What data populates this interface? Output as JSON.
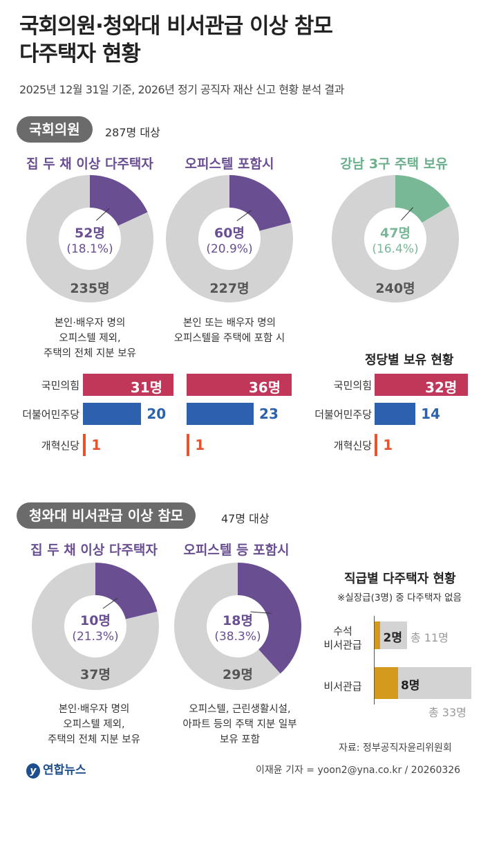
{
  "title_line1": "국회의원·청와대 비서관급 이상 참모",
  "title_line2": "다주택자 현황",
  "subtitle": "2025년 12월 31일 기준, 2026년 정기 공직자 재산 신고 현황 분석 결과",
  "assembly": {
    "pill": "국회의원",
    "target": "287명 대상",
    "party_section_title": "정당별 보유 현황"
  },
  "secretary": {
    "pill": "청와대 비서관급 이상 참모",
    "target": "47명 대상",
    "grade_title": "직급별 다주택자 현황",
    "grade_note": "※실장급(3명) 중 다주택자 없음"
  },
  "colors": {
    "purple": "#6a4e92",
    "green": "#79b896",
    "grey": "#d3d3d3",
    "red": "#c0375a",
    "blue": "#2b61ad",
    "orange": "#e8532b",
    "gold": "#d49a1c"
  },
  "chart_data": [
    {
      "type": "pie",
      "id": "assembly-multi",
      "title": "집 두 채 이상 다주택자",
      "slices": [
        {
          "label": "52명",
          "value": 52,
          "pct": "(18.1%)"
        },
        {
          "label": "235명",
          "value": 235
        }
      ],
      "note": [
        "본인·배우자 명의",
        "오피스텔 제외,",
        "주택의 전체 지분 보유"
      ]
    },
    {
      "type": "pie",
      "id": "assembly-officetel",
      "title": "오피스텔 포함시",
      "slices": [
        {
          "label": "60명",
          "value": 60,
          "pct": "(20.9%)"
        },
        {
          "label": "227명",
          "value": 227
        }
      ],
      "note": [
        "본인 또는 배우자 명의",
        "오피스텔을 주택에 포함 시"
      ]
    },
    {
      "type": "pie",
      "id": "assembly-gangnam",
      "title": "강남 3구 주택 보유",
      "slices": [
        {
          "label": "47명",
          "value": 47,
          "pct": "(16.4%)"
        },
        {
          "label": "240명",
          "value": 240
        }
      ]
    },
    {
      "type": "bar",
      "id": "party-bars",
      "categories": [
        "국민의힘",
        "더불어민주당",
        "개혁신당"
      ],
      "series": [
        {
          "values": [
            31,
            20,
            1
          ],
          "labels": [
            "31명",
            "20",
            "1"
          ]
        },
        {
          "values": [
            36,
            23,
            1
          ],
          "labels": [
            "36명",
            "23",
            "1"
          ]
        },
        {
          "values": [
            32,
            14,
            1
          ],
          "labels": [
            "32명",
            "14",
            "1"
          ]
        }
      ]
    },
    {
      "type": "pie",
      "id": "secretary-multi",
      "title": "집 두 채 이상 다주택자",
      "slices": [
        {
          "label": "10명",
          "value": 10,
          "pct": "(21.3%)"
        },
        {
          "label": "37명",
          "value": 37
        }
      ],
      "note": [
        "본인·배우자 명의",
        "오피스텔 제외,",
        "주택의 전체 지분 보유"
      ]
    },
    {
      "type": "pie",
      "id": "secretary-officetel",
      "title": "오피스텔 등 포함시",
      "slices": [
        {
          "label": "18명",
          "value": 18,
          "pct": "(38.3%)"
        },
        {
          "label": "29명",
          "value": 29
        }
      ],
      "note": [
        "오피스텔, 근린생활시설,",
        "아파트 등의 주택 지분 일부",
        "보유 포함"
      ]
    },
    {
      "type": "bar",
      "id": "grade-bars",
      "categories": [
        "수석\n비서관급",
        "비서관급"
      ],
      "values": [
        2,
        8
      ],
      "totals": [
        11,
        33
      ],
      "labels": [
        "2명",
        "8명"
      ],
      "total_labels": [
        "총 11명",
        "총 33명"
      ]
    }
  ],
  "source": "자료: 정부공직자윤리위원회",
  "credit": "이재윤 기자 = yoon2@yna.co.kr / 20260326",
  "logo": "연합뉴스",
  "logo_mark": "y"
}
